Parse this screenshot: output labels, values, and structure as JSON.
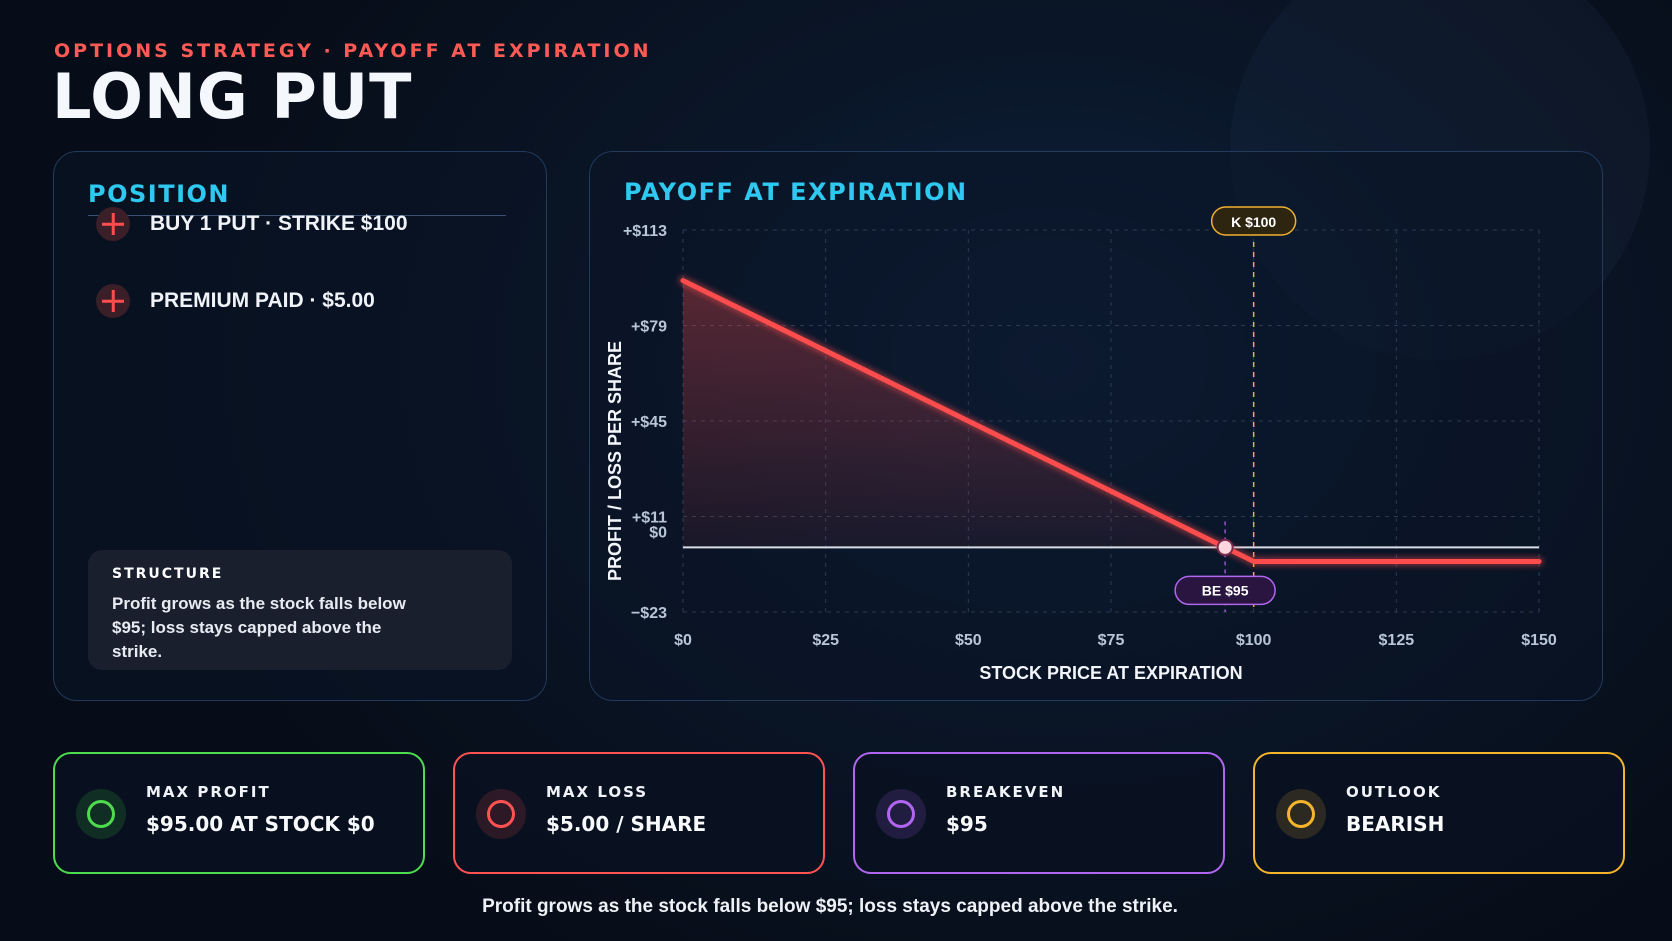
{
  "header": {
    "subtitle": "OPTIONS STRATEGY · PAYOFF AT EXPIRATION",
    "title": "LONG PUT"
  },
  "position": {
    "heading": "POSITION",
    "items": [
      {
        "icon": "plus-icon",
        "label": "BUY 1 PUT · STRIKE $100"
      },
      {
        "icon": "plus-icon",
        "label": "PREMIUM PAID · $5.00"
      }
    ],
    "structure": {
      "label": "STRUCTURE",
      "text": "Profit grows as the stock falls below $95; loss stays capped above the strike."
    }
  },
  "chart_panel": {
    "heading": "PAYOFF AT EXPIRATION"
  },
  "chart_data": {
    "type": "line",
    "title": "PAYOFF AT EXPIRATION",
    "xlabel": "STOCK PRICE AT EXPIRATION",
    "ylabel": "PROFIT / LOSS PER SHARE",
    "xlim": [
      0,
      150
    ],
    "ylim": [
      -23,
      113
    ],
    "x_ticks": [
      0,
      25,
      50,
      75,
      100,
      125,
      150
    ],
    "x_tick_labels": [
      "$0",
      "$25",
      "$50",
      "$75",
      "$100",
      "$125",
      "$150"
    ],
    "y_ticks": [
      113,
      79,
      45,
      11,
      0,
      -23
    ],
    "y_tick_labels": [
      "+$113",
      "+$79",
      "+$45",
      "+$11",
      "$0",
      "−$23"
    ],
    "grid": true,
    "series": [
      {
        "x": [
          0,
          100,
          150
        ],
        "y": [
          95,
          -5,
          -5
        ],
        "color": "#ff4d4d"
      }
    ],
    "strike": {
      "x": 100,
      "label": "K $100",
      "color": "#f0b030"
    },
    "breakeven": {
      "x": 95,
      "label": "BE $95",
      "color": "#b066f0"
    }
  },
  "stats": [
    {
      "label": "MAX PROFIT",
      "value": "$95.00 AT STOCK $0",
      "color": "#4ddc4d"
    },
    {
      "label": "MAX LOSS",
      "value": "$5.00 / SHARE",
      "color": "#ff5252"
    },
    {
      "label": "BREAKEVEN",
      "value": "$95",
      "color": "#b066f0"
    },
    {
      "label": "OUTLOOK",
      "value": "BEARISH",
      "color": "#f5b52a"
    }
  ],
  "footer": {
    "text": "Profit grows as the stock falls below $95; loss stays capped above the strike."
  }
}
